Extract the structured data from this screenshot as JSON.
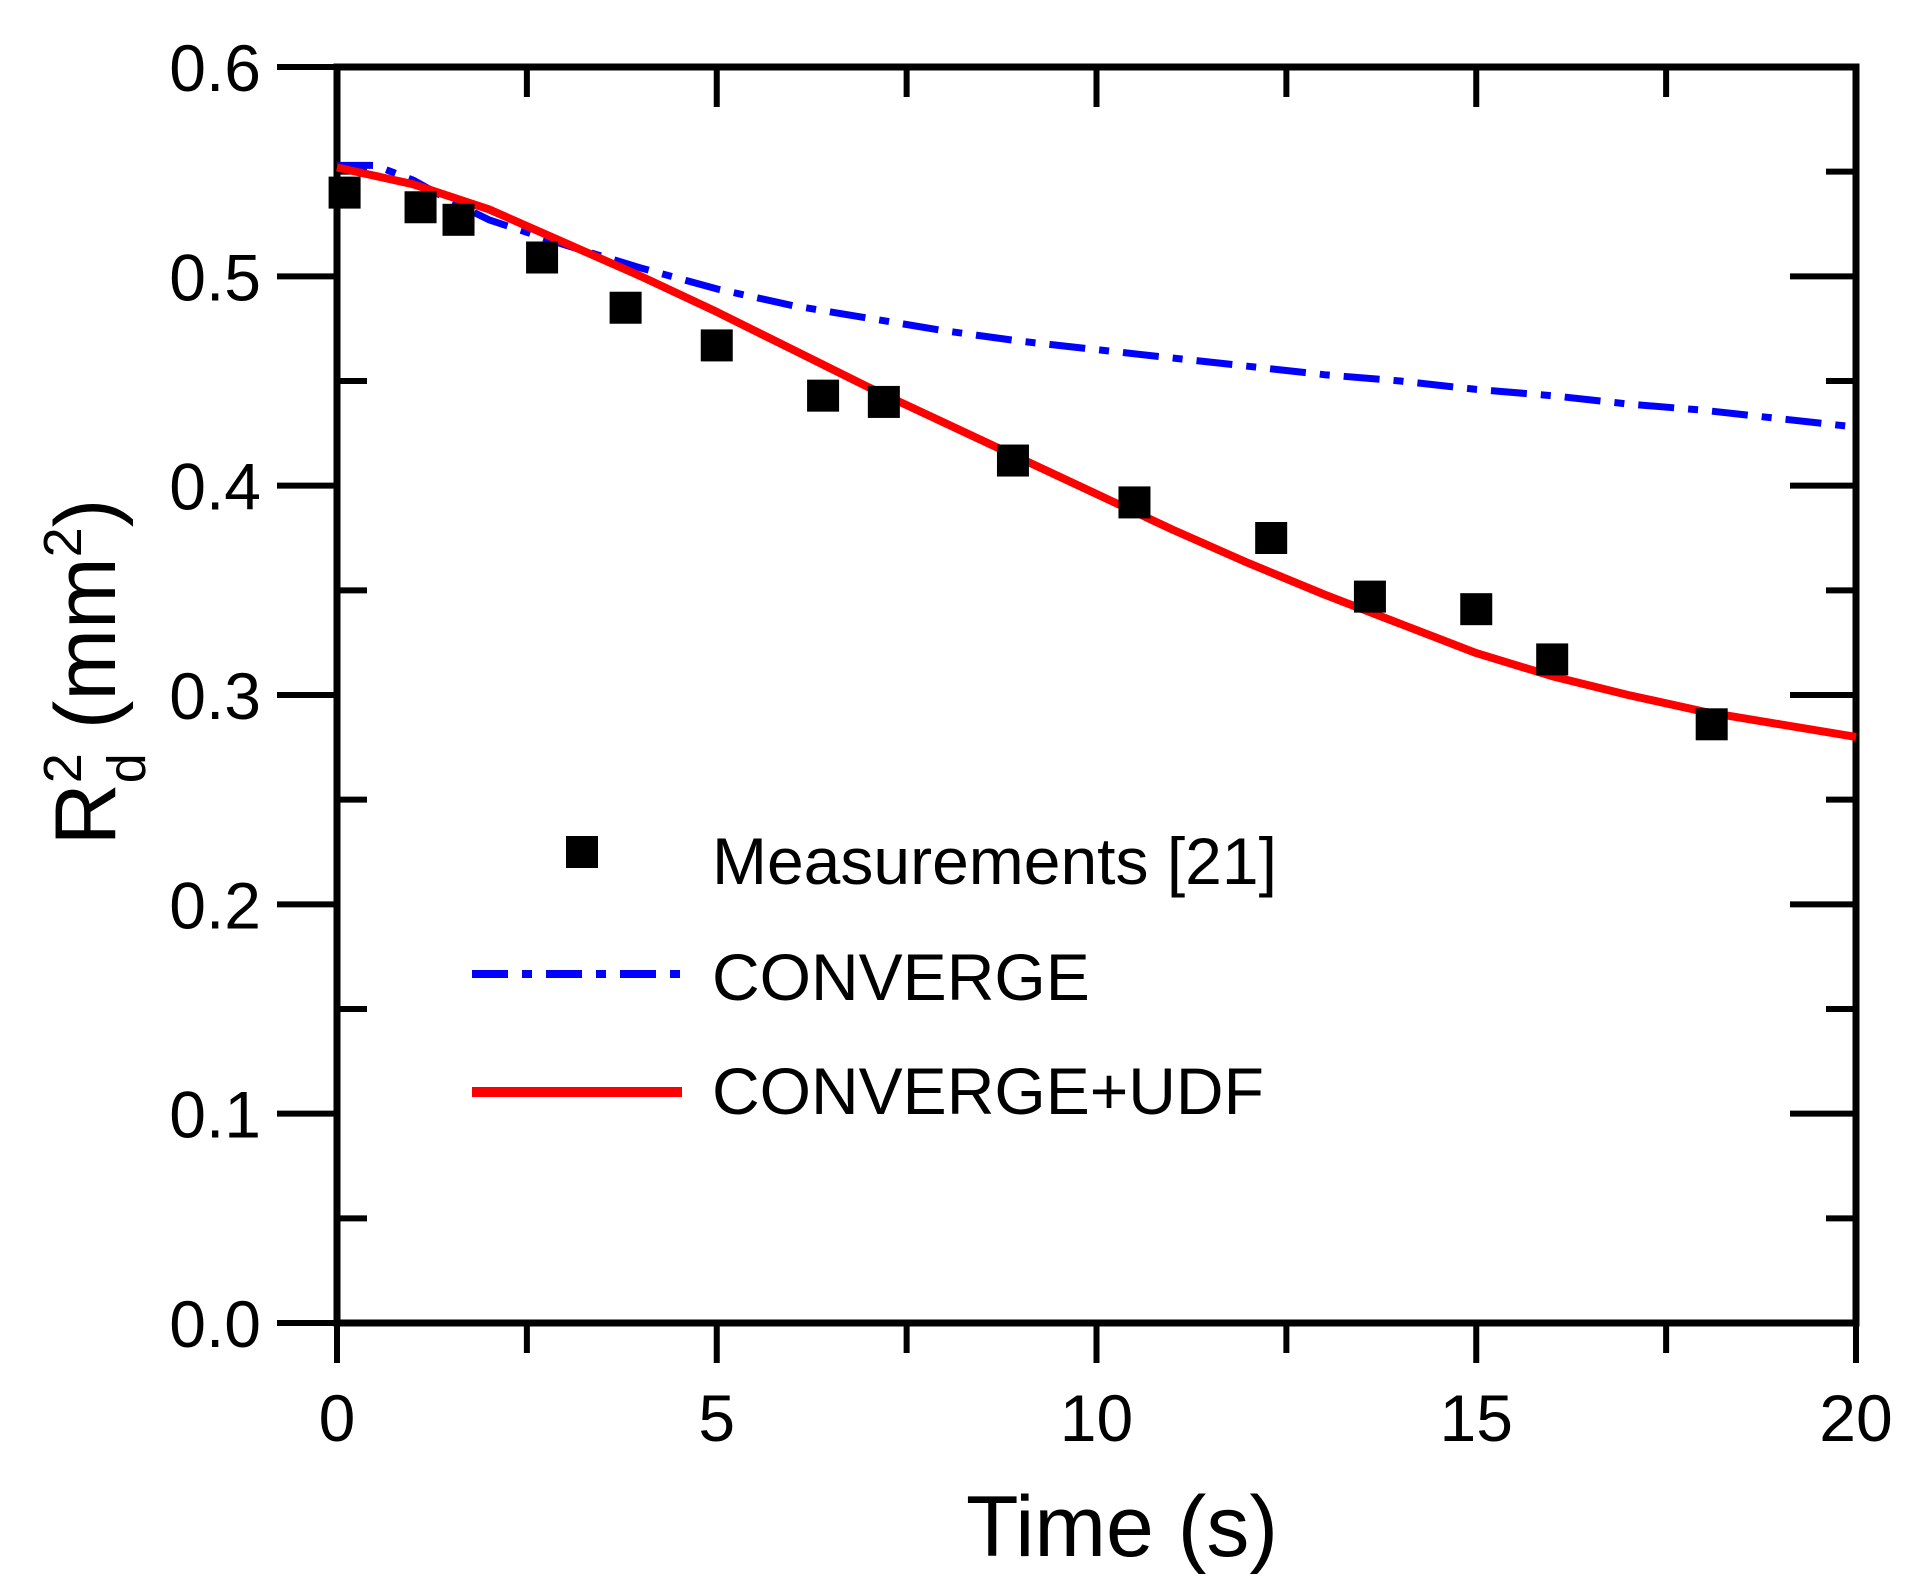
{
  "chart_data": {
    "type": "scatter+line",
    "title": "",
    "xlabel": "Time (s)",
    "ylabel": {
      "base": "R",
      "sup": "2",
      "sub": "d",
      "unit_open": " (mm",
      "unit_sup": "2",
      "unit_close": ")"
    },
    "xlim": [
      0,
      20
    ],
    "ylim": [
      0.0,
      0.6
    ],
    "x_ticks": [
      0,
      5,
      10,
      15,
      20
    ],
    "x_tick_labels": [
      "0",
      "5",
      "10",
      "15",
      "20"
    ],
    "y_ticks": [
      0.0,
      0.1,
      0.2,
      0.3,
      0.4,
      0.5,
      0.6
    ],
    "y_tick_labels": [
      "0.0",
      "0.1",
      "0.2",
      "0.3",
      "0.4",
      "0.5",
      "0.6"
    ],
    "x_minor_step": 2.5,
    "y_minor_step": 0.05,
    "grid": false,
    "legend_position": "lower-center",
    "series": [
      {
        "name": "Measurements [21]",
        "kind": "markers",
        "marker": "square",
        "color": "#000000",
        "x": [
          0.1,
          1.1,
          1.6,
          2.7,
          3.8,
          5.0,
          6.4,
          7.2,
          8.9,
          10.5,
          12.3,
          13.6,
          15.0,
          16.0,
          18.1
        ],
        "y": [
          0.54,
          0.533,
          0.527,
          0.509,
          0.485,
          0.467,
          0.443,
          0.44,
          0.412,
          0.392,
          0.375,
          0.347,
          0.341,
          0.317,
          0.286
        ]
      },
      {
        "name": "CONVERGE",
        "kind": "line",
        "style": "dash-dot",
        "color": "#0000ff",
        "x": [
          0,
          0.5,
          1,
          1.5,
          2,
          3,
          4,
          5,
          6,
          7,
          8,
          9,
          10,
          11,
          12,
          13,
          14,
          15,
          16,
          17,
          18,
          19,
          20
        ],
        "y": [
          0.553,
          0.553,
          0.546,
          0.536,
          0.527,
          0.515,
          0.504,
          0.494,
          0.486,
          0.48,
          0.474,
          0.469,
          0.465,
          0.461,
          0.457,
          0.453,
          0.45,
          0.446,
          0.443,
          0.439,
          0.436,
          0.432,
          0.428
        ]
      },
      {
        "name": "CONVERGE+UDF",
        "kind": "line",
        "style": "solid",
        "color": "#ff0000",
        "x": [
          0,
          1,
          2,
          3,
          4,
          5,
          6,
          7,
          8,
          9,
          10,
          11,
          12,
          13,
          14,
          15,
          16,
          17,
          18,
          19,
          20
        ],
        "y": [
          0.552,
          0.544,
          0.532,
          0.516,
          0.5,
          0.483,
          0.465,
          0.447,
          0.43,
          0.413,
          0.396,
          0.379,
          0.363,
          0.348,
          0.334,
          0.32,
          0.309,
          0.3,
          0.292,
          0.286,
          0.28
        ]
      }
    ]
  }
}
